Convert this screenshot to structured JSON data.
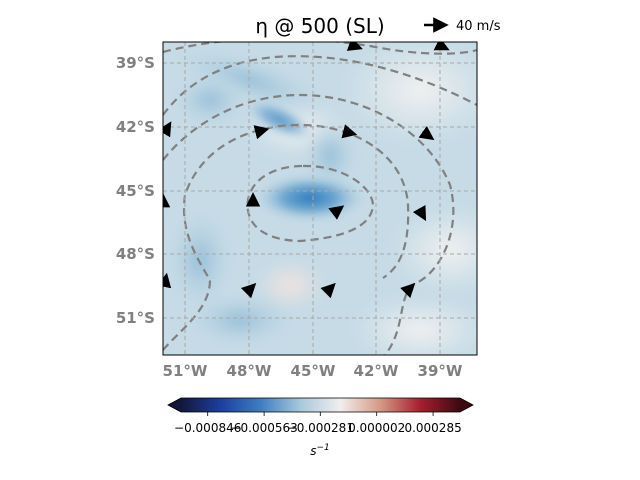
{
  "chart_data": {
    "type": "heatmap",
    "title": "η @ 500 (SL)",
    "subtype": "map vorticity field with dashed contours and wind vectors",
    "projection": "PlateCarree",
    "xlim": [
      -52.5,
      -37.5
    ],
    "ylim": [
      -52.5,
      -37.5
    ],
    "x_ticks": [
      {
        "value": -51,
        "label": "51°W"
      },
      {
        "value": -48,
        "label": "48°W"
      },
      {
        "value": -45,
        "label": "45°W"
      },
      {
        "value": -42,
        "label": "42°W"
      },
      {
        "value": -39,
        "label": "39°W"
      }
    ],
    "y_ticks": [
      {
        "value": -39,
        "label": "39°S"
      },
      {
        "value": -42,
        "label": "42°S"
      },
      {
        "value": -45,
        "label": "45°S"
      },
      {
        "value": -48,
        "label": "48°S"
      },
      {
        "value": -51,
        "label": "51°S"
      }
    ],
    "grid": true,
    "colormap": "balance",
    "colorbar": {
      "ticks": [
        "−0.000846",
        "−0.000563",
        "−0.000281",
        "0.000002",
        "0.000285"
      ],
      "tick_values": [
        -0.000846,
        -0.000563,
        -0.000281,
        2e-06,
        0.000285
      ],
      "range": [
        -0.00098,
        0.00042
      ],
      "extend": "both",
      "label": "s",
      "label_exponent": "−1",
      "colors": [
        "#13183a",
        "#1c3f9e",
        "#3d7fc0",
        "#a8c8dc",
        "#f1eeed",
        "#d49a86",
        "#a61f2e",
        "#3d0a12"
      ]
    },
    "quiver_key": {
      "label": "40 m/s",
      "speed": 40
    },
    "vorticity_center": {
      "lon": -44.5,
      "lat": -45.5,
      "value": -0.00042
    },
    "vectors": [
      {
        "lon": -44.2,
        "lat": -45.6,
        "u": 4,
        "v": 3
      },
      {
        "lon": -48.2,
        "lat": -45.2,
        "u": 0,
        "v": 8
      },
      {
        "lon": -52.5,
        "lat": -45.2,
        "u": 0,
        "v": 6
      },
      {
        "lon": -52.4,
        "lat": -41.8,
        "u": 6,
        "v": 10
      },
      {
        "lon": -48.0,
        "lat": -41.8,
        "u": 12,
        "v": 3
      },
      {
        "lon": -43.8,
        "lat": -41.8,
        "u": 12,
        "v": -3
      },
      {
        "lon": -40.1,
        "lat": -41.8,
        "u": 14,
        "v": -10
      },
      {
        "lon": -40.2,
        "lat": -45.6,
        "u": 5,
        "v": -9
      },
      {
        "lon": -43.6,
        "lat": -37.6,
        "u": 16,
        "v": -6
      },
      {
        "lon": -39.4,
        "lat": -37.6,
        "u": 14,
        "v": -7
      },
      {
        "lon": -52.4,
        "lat": -49.0,
        "u": 1,
        "v": 5
      },
      {
        "lon": -48.3,
        "lat": -49.3,
        "u": 0.5,
        "v": 0.5
      },
      {
        "lon": -44.5,
        "lat": -49.3,
        "u": 0.5,
        "v": 0.5
      },
      {
        "lon": -40.7,
        "lat": -49.3,
        "u": 0.5,
        "v": 0.5
      }
    ]
  }
}
